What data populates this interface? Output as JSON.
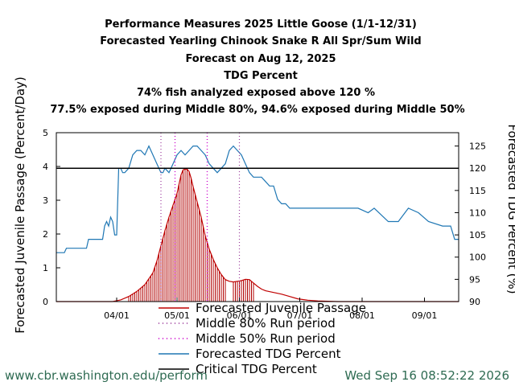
{
  "chart_data": {
    "type": "line",
    "title_lines": [
      "Performance Measures 2025 Little Goose (1/1-12/31)",
      "Forecasted Yearling Chinook Snake R All Spr/Sum Wild",
      "Forecast on Aug 12, 2025",
      "TDG Percent",
      "74% fish analyzed exposed above 120 %",
      "77.5% exposed during Middle 80%, 94.6% exposed during Middle 50%"
    ],
    "ylabel_left": "Forecasted Juvenile Passage (Percent/Day)",
    "ylabel_right": "Forecasted TDG Percent (%)",
    "x_tick_labels": [
      "04/01",
      "05/01",
      "06/01",
      "07/01",
      "08/01",
      "09/01"
    ],
    "x_tick_days": [
      90,
      120,
      151,
      181,
      212,
      243
    ],
    "xlim": [
      60,
      260
    ],
    "ylim_left": [
      0,
      5
    ],
    "left_ticks": [
      "0",
      "1",
      "2",
      "3",
      "4",
      "5"
    ],
    "ylim_right": [
      90,
      128
    ],
    "right_ticks": [
      "90",
      "95",
      "100",
      "105",
      "110",
      "115",
      "120",
      "125"
    ],
    "grid": false,
    "legend_position": "bottom-center",
    "legend": [
      {
        "label": "Forecasted Juvenile Passage",
        "color": "#c00000",
        "style": "line"
      },
      {
        "label": "Middle 80% Run period",
        "color": "#9b3a9b",
        "style": "dotted"
      },
      {
        "label": "Middle 50% Run period",
        "color": "#cc00cc",
        "style": "dotted"
      },
      {
        "label": "Forecasted TDG Percent",
        "color": "#1f77b4",
        "style": "line"
      },
      {
        "label": "Critical TDG Percent",
        "color": "#000000",
        "style": "line"
      }
    ],
    "critical_tdg": 120,
    "middle80_days": [
      112,
      151
    ],
    "middle50_days": [
      119,
      135
    ],
    "passage": {
      "x": [
        60,
        88,
        92,
        96,
        100,
        104,
        108,
        110,
        112,
        114,
        116,
        118,
        120,
        122,
        123,
        124,
        125,
        126,
        127,
        128,
        130,
        132,
        134,
        136,
        138,
        140,
        142,
        144,
        146,
        148,
        150,
        152,
        154,
        156,
        158,
        160,
        162,
        164,
        168,
        172,
        176,
        180,
        185,
        190,
        195,
        200,
        260
      ],
      "y": [
        0,
        0,
        0.05,
        0.15,
        0.3,
        0.5,
        0.85,
        1.2,
        1.65,
        2.1,
        2.5,
        2.85,
        3.2,
        3.75,
        3.9,
        3.92,
        3.92,
        3.85,
        3.65,
        3.4,
        2.95,
        2.5,
        1.95,
        1.55,
        1.25,
        1.0,
        0.8,
        0.65,
        0.6,
        0.58,
        0.6,
        0.62,
        0.66,
        0.65,
        0.55,
        0.45,
        0.37,
        0.32,
        0.27,
        0.22,
        0.15,
        0.08,
        0.04,
        0.02,
        0.01,
        0,
        0
      ]
    },
    "passage_bars_days": [
      96,
      97,
      98,
      99,
      100,
      101,
      102,
      103,
      104,
      105,
      106,
      107,
      108,
      109,
      110,
      111,
      112,
      113,
      114,
      115,
      116,
      117,
      118,
      119,
      120,
      121,
      122,
      123,
      124,
      125,
      126,
      127,
      128,
      129,
      130,
      131,
      132,
      133,
      134,
      135,
      136,
      137,
      138,
      139,
      140,
      141,
      142,
      143,
      144,
      148,
      149,
      150,
      151,
      152,
      153,
      154,
      155,
      156,
      157,
      158
    ],
    "tdg": {
      "x": [
        60,
        64,
        65,
        75,
        76,
        83,
        84,
        85,
        86,
        87,
        88,
        89,
        90,
        91,
        92,
        93,
        94,
        96,
        98,
        100,
        102,
        104,
        105,
        106,
        108,
        110,
        112,
        113,
        114,
        116,
        118,
        120,
        122,
        124,
        126,
        128,
        130,
        132,
        134,
        136,
        138,
        140,
        142,
        144,
        146,
        148,
        150,
        152,
        154,
        156,
        158,
        160,
        162,
        164,
        166,
        168,
        170,
        172,
        174,
        176,
        180,
        185,
        190,
        195,
        200,
        205,
        210,
        215,
        218,
        225,
        230,
        235,
        240,
        245,
        252,
        256,
        258,
        260
      ],
      "y": [
        101,
        101,
        102,
        102,
        104,
        104,
        107,
        108,
        107,
        109,
        108,
        105,
        105,
        120,
        120,
        119,
        119,
        120,
        123,
        124,
        124,
        123,
        124,
        125,
        123,
        121,
        119,
        119,
        120,
        119,
        121,
        123,
        124,
        123,
        124,
        125,
        125,
        124,
        123,
        121,
        120,
        119,
        120,
        121,
        124,
        125,
        124,
        123,
        121,
        119,
        118,
        118,
        118,
        117,
        116,
        116,
        113,
        112,
        112,
        111,
        111,
        111,
        111,
        111,
        111,
        111,
        111,
        110,
        111,
        108,
        108,
        111,
        110,
        108,
        107,
        107,
        104,
        104
      ]
    }
  },
  "footer": {
    "url": "www.cbr.washington.edu/perform",
    "timestamp": "Wed Sep 16 08:52:22 2026"
  }
}
